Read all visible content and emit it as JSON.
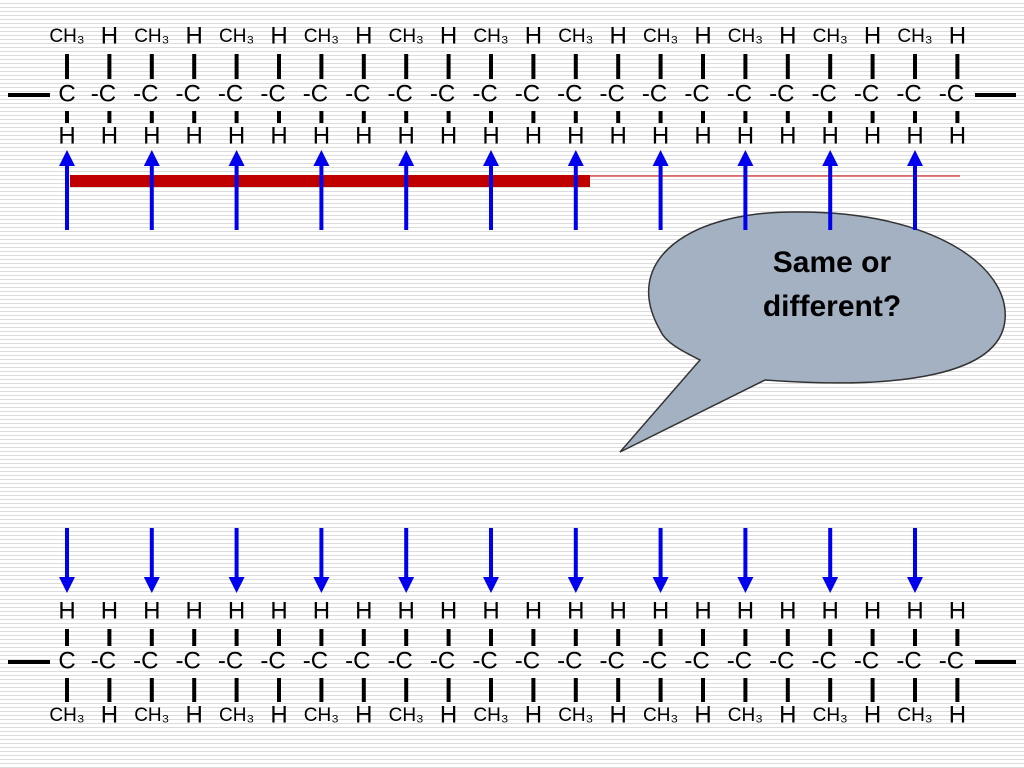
{
  "top_chain": {
    "above": [
      "CH₃",
      "H",
      "CH₃",
      "H",
      "CH₃",
      "H",
      "CH₃",
      "H",
      "CH₃",
      "H",
      "CH₃",
      "H",
      "CH₃",
      "H",
      "CH₃",
      "H",
      "CH₃",
      "H",
      "CH₃",
      "H",
      "CH₃",
      "H"
    ],
    "carbons": [
      "C",
      "-C",
      "-C",
      "-C",
      "-C",
      "-C",
      "-C",
      "-C",
      "-C",
      "-C",
      "-C",
      "-C",
      "-C",
      "-C",
      "-C",
      "-C",
      "-C",
      "-C",
      "-C",
      "-C",
      "-C",
      "-C"
    ],
    "below": [
      "H",
      "H",
      "H",
      "H",
      "H",
      "H",
      "H",
      "H",
      "H",
      "H",
      "H",
      "H",
      "H",
      "H",
      "H",
      "H",
      "H",
      "H",
      "H",
      "H",
      "H",
      "H"
    ]
  },
  "bottom_chain": {
    "above": [
      "H",
      "H",
      "H",
      "H",
      "H",
      "H",
      "H",
      "H",
      "H",
      "H",
      "H",
      "H",
      "H",
      "H",
      "H",
      "H",
      "H",
      "H",
      "H",
      "H",
      "H",
      "H"
    ],
    "carbons": [
      "C",
      "-C",
      "-C",
      "-C",
      "-C",
      "-C",
      "-C",
      "-C",
      "-C",
      "-C",
      "-C",
      "-C",
      "-C",
      "-C",
      "-C",
      "-C",
      "-C",
      "-C",
      "-C",
      "-C",
      "-C",
      "-C"
    ],
    "below": [
      "CH₃",
      "H",
      "CH₃",
      "H",
      "CH₃",
      "H",
      "CH₃",
      "H",
      "CH₃",
      "H",
      "CH₃",
      "H",
      "CH₃",
      "H",
      "CH₃",
      "H",
      "CH₃",
      "H",
      "CH₃",
      "H",
      "CH₃",
      "H"
    ]
  },
  "bubble": {
    "lines": [
      "Same or",
      "different?"
    ]
  }
}
